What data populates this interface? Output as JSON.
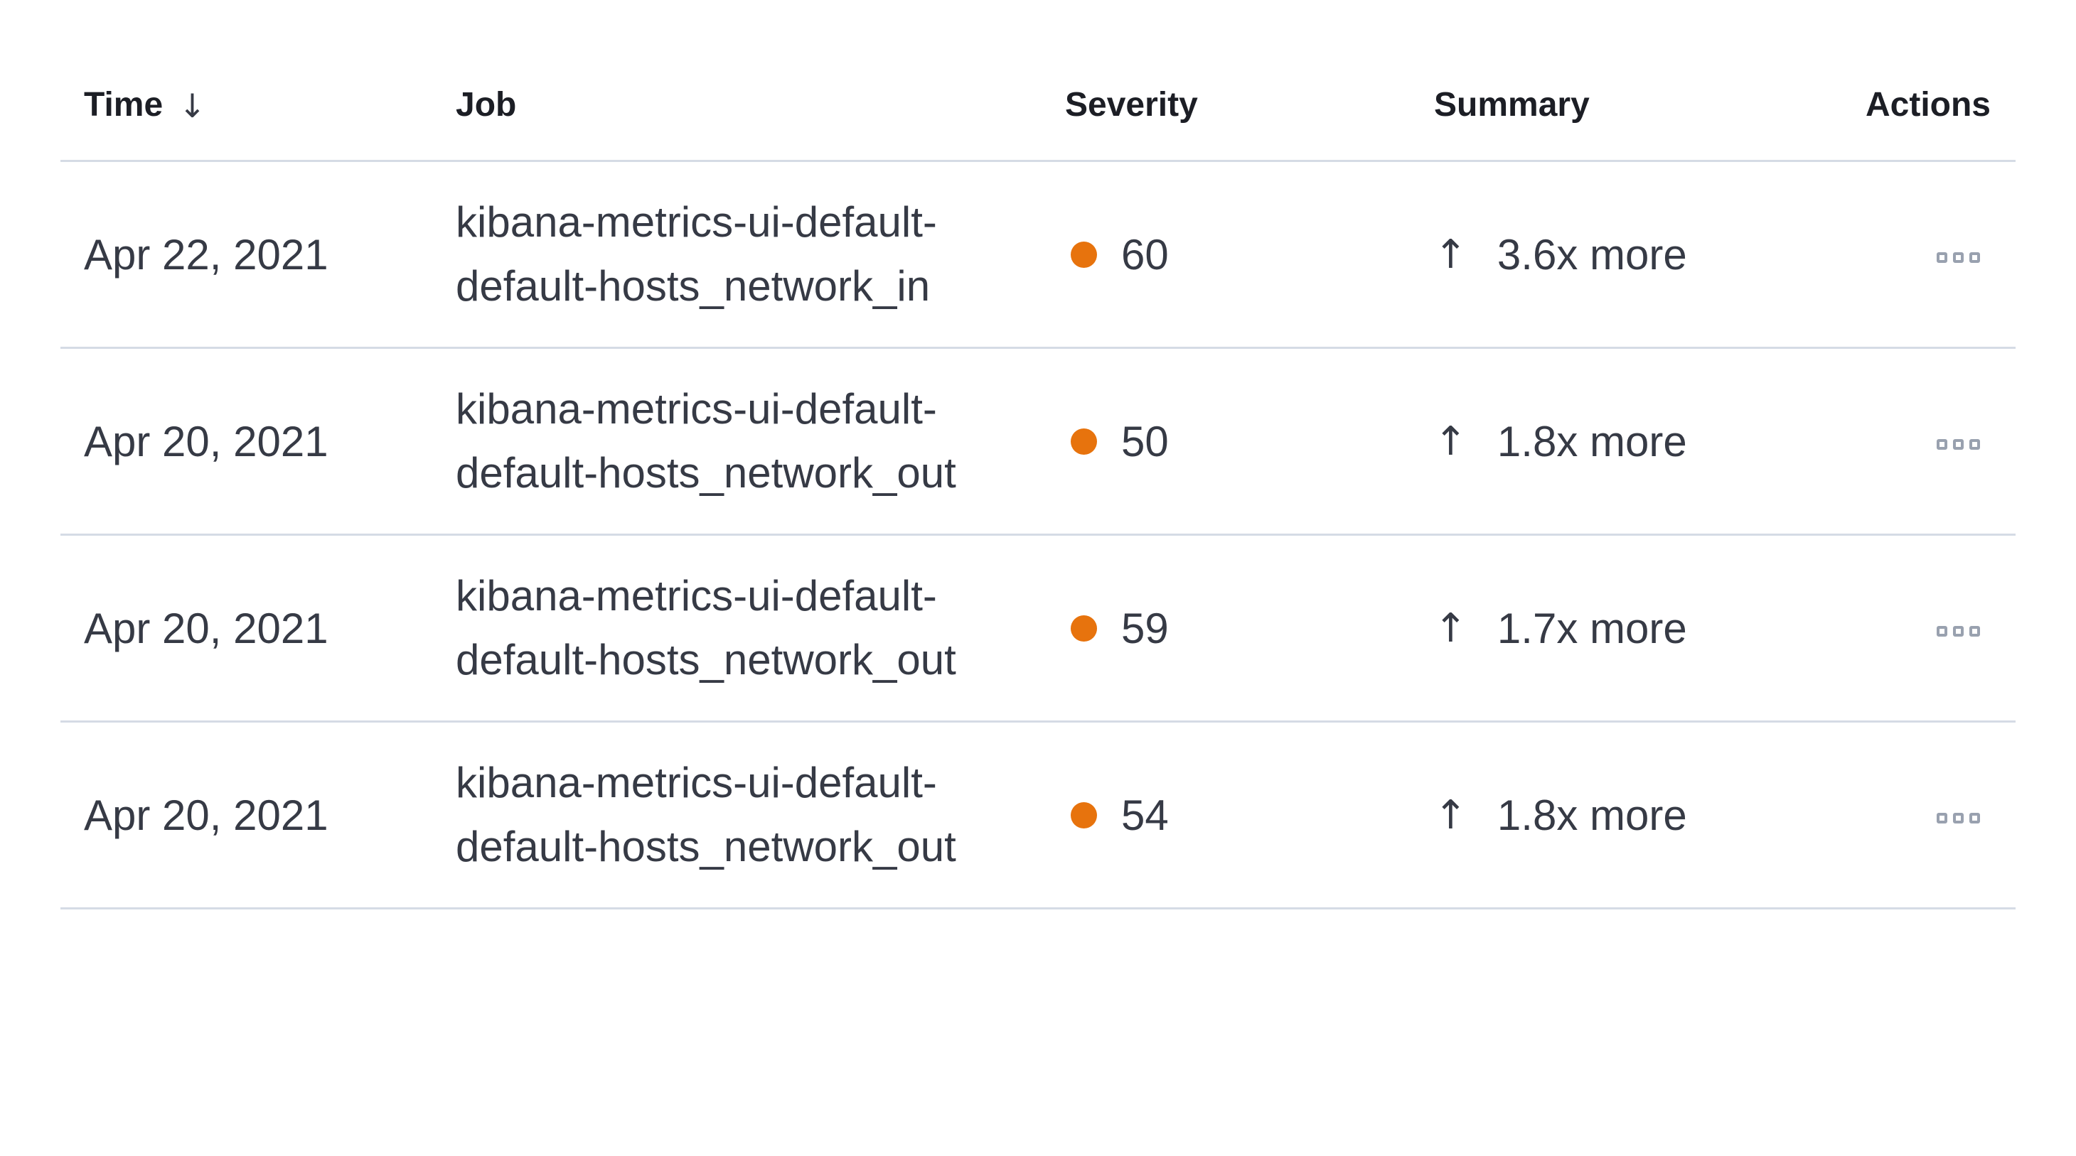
{
  "table": {
    "columns": [
      {
        "key": "time",
        "label": "Time",
        "sortable": true,
        "sort": "desc"
      },
      {
        "key": "job",
        "label": "Job"
      },
      {
        "key": "severity",
        "label": "Severity"
      },
      {
        "key": "summary",
        "label": "Summary"
      },
      {
        "key": "actions",
        "label": "Actions"
      }
    ],
    "icons": {
      "sort_desc": "↓",
      "trend_up": "↑"
    },
    "rows": [
      {
        "time": "Apr 22, 2021",
        "job_line1": "kibana-metrics-ui-default-",
        "job_line2": "default-hosts_network_in",
        "severity": "60",
        "summary": "3.6x more"
      },
      {
        "time": "Apr 20, 2021",
        "job_line1": "kibana-metrics-ui-default-",
        "job_line2": "default-hosts_network_out",
        "severity": "50",
        "summary": "1.8x more"
      },
      {
        "time": "Apr 20, 2021",
        "job_line1": "kibana-metrics-ui-default-",
        "job_line2": "default-hosts_network_out",
        "severity": "59",
        "summary": "1.7x more"
      },
      {
        "time": "Apr 20, 2021",
        "job_line1": "kibana-metrics-ui-default-",
        "job_line2": "default-hosts_network_out",
        "severity": "54",
        "summary": "1.8x more"
      }
    ],
    "colors": {
      "severity_dot": "#e7730d",
      "row_border": "#d5dbe5",
      "body_text": "#363a45",
      "header_text": "#1c1e25",
      "actions_icon": "#99a1af"
    }
  }
}
